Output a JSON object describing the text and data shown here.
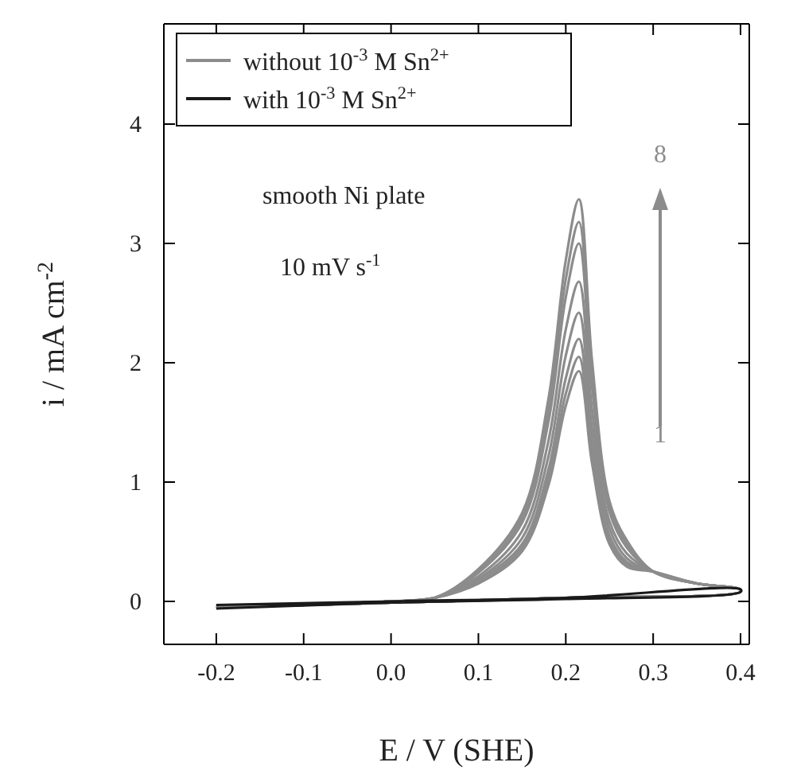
{
  "chart_data": {
    "type": "line",
    "xlabel": "E / V (SHE)",
    "ylabel": "i / mA cm$^{-2}$",
    "xlim": [
      -0.26,
      0.41
    ],
    "ylim": [
      -0.36,
      4.84
    ],
    "xticks": [
      {
        "value": -0.2,
        "label": "-0.2"
      },
      {
        "value": -0.1,
        "label": "-0.1"
      },
      {
        "value": 0,
        "label": "0.0"
      },
      {
        "value": 0.1,
        "label": "0.1"
      },
      {
        "value": 0.2,
        "label": "0.2"
      },
      {
        "value": 0.3,
        "label": "0.3"
      },
      {
        "value": 0.4,
        "label": "0.4"
      }
    ],
    "yticks": [
      0,
      1,
      2,
      3,
      4
    ],
    "legend": "top left",
    "grid": false,
    "marker": "none",
    "line_style": "solid",
    "annotations": [
      "smooth Ni plate",
      "10 mV s$^{-1}$",
      "8",
      "1"
    ],
    "series": [
      {
        "name": "without 10$^{-3}$ M Sn$^{2+}$",
        "color": "#8c8c8c",
        "x": [
          -0.2,
          0,
          0.2,
          0.4,
          0.4,
          0.35,
          0.3,
          0.27,
          0.25,
          0.23,
          0.215,
          0.2,
          0.18,
          0.15,
          0.1,
          0.05,
          0,
          -0.2
        ],
        "values": [
          -0.05,
          -0.01,
          0.03,
          0.08,
          0.1,
          0.15,
          0.25,
          0.29,
          0.48,
          1.16,
          1.93,
          1.64,
          0.97,
          0.42,
          0.15,
          0.03,
          0,
          -0.04
        ]
      },
      {
        "color": "#8c8c8c",
        "x": [
          -0.2,
          0,
          0.2,
          0.4,
          0.4,
          0.35,
          0.3,
          0.27,
          0.25,
          0.23,
          0.215,
          0.2,
          0.18,
          0.15,
          0.1,
          0.05,
          0,
          -0.2
        ],
        "values": [
          -0.05,
          -0.01,
          0.03,
          0.08,
          0.1,
          0.15,
          0.25,
          0.31,
          0.51,
          1.23,
          2.05,
          1.74,
          1.03,
          0.45,
          0.16,
          0.03,
          0,
          -0.04
        ]
      },
      {
        "color": "#8c8c8c",
        "x": [
          -0.2,
          0,
          0.2,
          0.4,
          0.4,
          0.35,
          0.3,
          0.27,
          0.25,
          0.23,
          0.215,
          0.2,
          0.18,
          0.15,
          0.1,
          0.05,
          0,
          -0.2
        ],
        "values": [
          -0.05,
          -0.01,
          0.03,
          0.08,
          0.1,
          0.15,
          0.25,
          0.33,
          0.55,
          1.32,
          2.2,
          1.87,
          1.1,
          0.48,
          0.18,
          0.03,
          0,
          -0.04
        ]
      },
      {
        "color": "#8c8c8c",
        "x": [
          -0.2,
          0,
          0.2,
          0.4,
          0.4,
          0.35,
          0.3,
          0.27,
          0.25,
          0.23,
          0.215,
          0.2,
          0.18,
          0.15,
          0.1,
          0.05,
          0,
          -0.2
        ],
        "values": [
          -0.05,
          -0.01,
          0.03,
          0.08,
          0.1,
          0.15,
          0.25,
          0.36,
          0.61,
          1.45,
          2.42,
          2.06,
          1.21,
          0.53,
          0.19,
          0.03,
          0,
          -0.04
        ]
      },
      {
        "color": "#8c8c8c",
        "x": [
          -0.2,
          0,
          0.2,
          0.4,
          0.4,
          0.35,
          0.3,
          0.27,
          0.25,
          0.23,
          0.215,
          0.2,
          0.18,
          0.15,
          0.1,
          0.05,
          0,
          -0.2
        ],
        "values": [
          -0.05,
          -0.01,
          0.03,
          0.08,
          0.1,
          0.15,
          0.25,
          0.4,
          0.67,
          1.61,
          2.68,
          2.28,
          1.34,
          0.59,
          0.21,
          0.03,
          0,
          -0.04
        ]
      },
      {
        "color": "#8c8c8c",
        "x": [
          -0.2,
          0,
          0.2,
          0.4,
          0.4,
          0.35,
          0.3,
          0.27,
          0.25,
          0.23,
          0.215,
          0.2,
          0.18,
          0.15,
          0.1,
          0.05,
          0,
          -0.2
        ],
        "values": [
          -0.05,
          -0.01,
          0.03,
          0.08,
          0.1,
          0.15,
          0.25,
          0.45,
          0.75,
          1.8,
          3.0,
          2.55,
          1.5,
          0.66,
          0.24,
          0.03,
          0,
          -0.04
        ]
      },
      {
        "color": "#8c8c8c",
        "x": [
          -0.2,
          0,
          0.2,
          0.4,
          0.4,
          0.35,
          0.3,
          0.27,
          0.25,
          0.23,
          0.215,
          0.2,
          0.18,
          0.15,
          0.1,
          0.05,
          0,
          -0.2
        ],
        "values": [
          -0.05,
          -0.01,
          0.03,
          0.08,
          0.1,
          0.15,
          0.25,
          0.48,
          0.8,
          1.91,
          3.18,
          2.7,
          1.59,
          0.7,
          0.25,
          0.03,
          0,
          -0.04
        ]
      },
      {
        "color": "#8c8c8c",
        "x": [
          -0.2,
          0,
          0.2,
          0.4,
          0.4,
          0.35,
          0.3,
          0.27,
          0.25,
          0.23,
          0.215,
          0.2,
          0.18,
          0.15,
          0.1,
          0.05,
          0,
          -0.2
        ],
        "values": [
          -0.05,
          -0.01,
          0.03,
          0.08,
          0.1,
          0.15,
          0.25,
          0.51,
          0.84,
          2.02,
          3.37,
          2.86,
          1.69,
          0.74,
          0.27,
          0.03,
          0,
          -0.04
        ]
      },
      {
        "name": "with 10$^{-3}$ M Sn$^{2+}$",
        "color": "#1a1a1a",
        "x": [
          -0.2,
          0,
          0.2,
          0.4,
          0.4,
          0.2,
          0,
          -0.2
        ],
        "values": [
          -0.06,
          -0.01,
          0.02,
          0.08,
          0.1,
          0.03,
          0,
          -0.03
        ]
      }
    ]
  }
}
